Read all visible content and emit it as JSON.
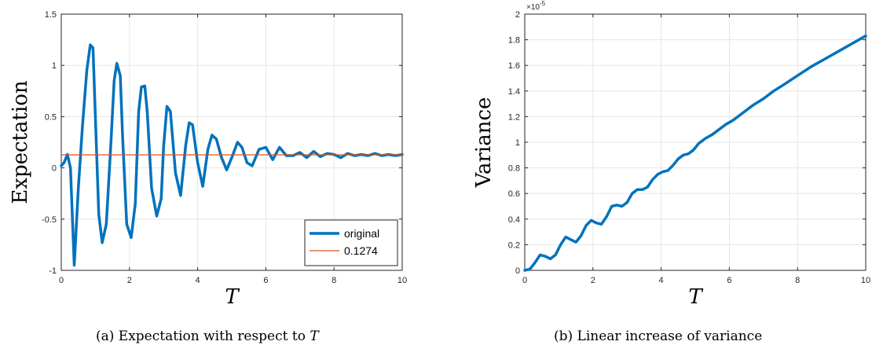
{
  "chart_data": [
    {
      "type": "line",
      "ylabel": "Expectation",
      "xlabel": "T",
      "xlim": [
        0,
        10
      ],
      "ylim": [
        -1,
        1.5
      ],
      "xticks": [
        0,
        2,
        4,
        6,
        8,
        10
      ],
      "yticks": [
        -1,
        -0.5,
        0,
        0.5,
        1,
        1.5
      ],
      "x_tick_labels": [
        "0",
        "2",
        "4",
        "6",
        "8",
        "10"
      ],
      "y_tick_labels": [
        "-1",
        "-0.5",
        "0",
        "0.5",
        "1",
        "1.5"
      ],
      "grid": true,
      "legend_position": "bottom-right",
      "series": [
        {
          "name": "original",
          "color": "#0072BD",
          "x": [
            0,
            0.08,
            0.18,
            0.27,
            0.38,
            0.5,
            0.62,
            0.75,
            0.85,
            0.93,
            1.0,
            1.1,
            1.2,
            1.32,
            1.45,
            1.55,
            1.63,
            1.73,
            1.8,
            1.92,
            2.05,
            2.17,
            2.27,
            2.35,
            2.45,
            2.52,
            2.65,
            2.8,
            2.93,
            3.0,
            3.1,
            3.2,
            3.35,
            3.5,
            3.65,
            3.75,
            3.85,
            4.0,
            4.15,
            4.3,
            4.42,
            4.55,
            4.7,
            4.85,
            5.0,
            5.17,
            5.3,
            5.45,
            5.6,
            5.8,
            6.0,
            6.2,
            6.4,
            6.6,
            6.8,
            7.0,
            7.2,
            7.4,
            7.6,
            7.8,
            8.0,
            8.2,
            8.4,
            8.6,
            8.8,
            9.0,
            9.2,
            9.4,
            9.6,
            9.8,
            10.0
          ],
          "y": [
            0.02,
            0.05,
            0.13,
            0.0,
            -0.95,
            -0.2,
            0.4,
            0.95,
            1.2,
            1.17,
            0.5,
            -0.45,
            -0.73,
            -0.55,
            0.2,
            0.85,
            1.02,
            0.9,
            0.3,
            -0.55,
            -0.68,
            -0.35,
            0.55,
            0.79,
            0.8,
            0.55,
            -0.2,
            -0.47,
            -0.3,
            0.2,
            0.6,
            0.55,
            -0.05,
            -0.27,
            0.22,
            0.44,
            0.42,
            0.05,
            -0.18,
            0.18,
            0.32,
            0.28,
            0.1,
            -0.02,
            0.1,
            0.25,
            0.2,
            0.05,
            0.02,
            0.18,
            0.2,
            0.08,
            0.2,
            0.12,
            0.12,
            0.15,
            0.1,
            0.16,
            0.11,
            0.14,
            0.13,
            0.1,
            0.14,
            0.12,
            0.13,
            0.12,
            0.14,
            0.12,
            0.13,
            0.12,
            0.13
          ]
        },
        {
          "name": "0.1274",
          "color": "#D95319",
          "x": [
            0,
            10
          ],
          "y": [
            0.1274,
            0.1274
          ]
        }
      ]
    },
    {
      "type": "line",
      "ylabel": "Variance",
      "xlabel": "T",
      "xlim": [
        0,
        10
      ],
      "ylim": [
        0,
        2
      ],
      "exponent_label": "×10",
      "exponent_power": "-5",
      "xticks": [
        0,
        2,
        4,
        6,
        8,
        10
      ],
      "yticks": [
        0,
        0.2,
        0.4,
        0.6,
        0.8,
        1,
        1.2,
        1.4,
        1.6,
        1.8,
        2
      ],
      "x_tick_labels": [
        "0",
        "2",
        "4",
        "6",
        "8",
        "10"
      ],
      "y_tick_labels": [
        "0",
        "0.2",
        "0.4",
        "0.6",
        "0.8",
        "1",
        "1.2",
        "1.4",
        "1.6",
        "1.8",
        "2"
      ],
      "grid": true,
      "series": [
        {
          "color": "#0072BD",
          "x": [
            0,
            0.15,
            0.3,
            0.45,
            0.6,
            0.75,
            0.9,
            1.05,
            1.2,
            1.35,
            1.5,
            1.65,
            1.8,
            1.95,
            2.1,
            2.25,
            2.4,
            2.55,
            2.7,
            2.85,
            3.0,
            3.15,
            3.3,
            3.45,
            3.6,
            3.75,
            3.9,
            4.05,
            4.2,
            4.35,
            4.5,
            4.65,
            4.8,
            4.95,
            5.1,
            5.3,
            5.5,
            5.7,
            5.9,
            6.1,
            6.4,
            6.7,
            7.0,
            7.3,
            7.6,
            8.0,
            8.4,
            8.8,
            9.2,
            9.6,
            10.0
          ],
          "y": [
            0.0,
            0.01,
            0.06,
            0.12,
            0.11,
            0.09,
            0.12,
            0.2,
            0.26,
            0.24,
            0.22,
            0.27,
            0.35,
            0.39,
            0.37,
            0.36,
            0.42,
            0.5,
            0.51,
            0.5,
            0.53,
            0.6,
            0.63,
            0.63,
            0.65,
            0.71,
            0.75,
            0.77,
            0.78,
            0.82,
            0.87,
            0.9,
            0.91,
            0.94,
            0.99,
            1.03,
            1.06,
            1.1,
            1.14,
            1.17,
            1.23,
            1.29,
            1.34,
            1.4,
            1.45,
            1.52,
            1.59,
            1.65,
            1.71,
            1.77,
            1.83
          ]
        }
      ]
    }
  ],
  "captions": {
    "a_prefix": "(a)  Expectation with respect to ",
    "a_var": "T",
    "b": "(b)  Linear increase of variance"
  }
}
